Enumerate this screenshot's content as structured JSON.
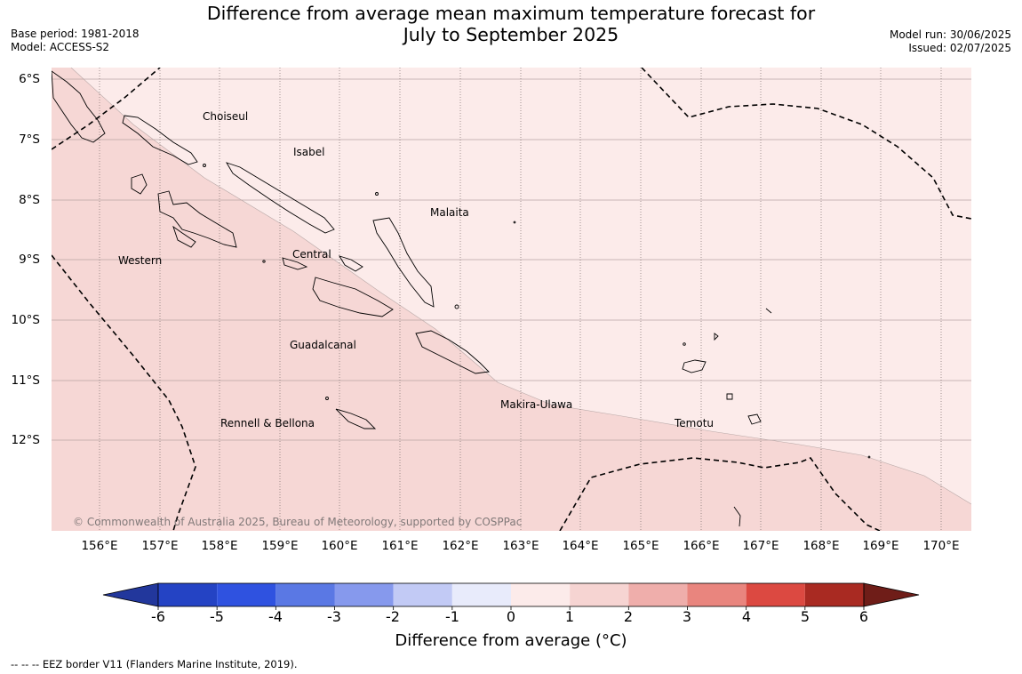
{
  "title": {
    "line1": "Difference from average mean maximum temperature forecast for",
    "line2": "July to September 2025"
  },
  "meta_left": {
    "base_period": "Base period: 1981-2018",
    "model": "Model: ACCESS-S2"
  },
  "meta_right": {
    "model_run": "Model run: 30/06/2025",
    "issued": "Issued: 02/07/2025"
  },
  "map": {
    "lat_labels": [
      "6°S",
      "7°S",
      "8°S",
      "9°S",
      "10°S",
      "11°S",
      "12°S"
    ],
    "lon_labels": [
      "156°E",
      "157°E",
      "158°E",
      "159°E",
      "160°E",
      "161°E",
      "162°E",
      "163°E",
      "164°E",
      "165°E",
      "166°E",
      "167°E",
      "168°E",
      "169°E",
      "170°E"
    ],
    "places": {
      "choiseul": "Choiseul",
      "isabel": "Isabel",
      "malaita": "Malaita",
      "western": "Western",
      "central": "Central",
      "guadalcanal": "Guadalcanal",
      "makira": "Makira-Ulawa",
      "temotu": "Temotu",
      "rennell": "Rennell & Bellona"
    },
    "copyright": "© Commonwealth of Australia 2025, Bureau of Meteorology, supported by COSPPac",
    "colors": {
      "zone_0_1": "#fcebea",
      "zone_1_2": "#f6d7d5"
    }
  },
  "colorbar": {
    "ticks": [
      "-6",
      "-5",
      "-4",
      "-3",
      "-2",
      "-1",
      "0",
      "1",
      "2",
      "3",
      "4",
      "5",
      "6"
    ],
    "colors": [
      "#22379c",
      "#2443c4",
      "#2f52e0",
      "#5a78e4",
      "#8699ed",
      "#c2caf5",
      "#e8ebfb",
      "#fcebea",
      "#f6d4d2",
      "#efaeab",
      "#e9857e",
      "#dc4941",
      "#a92a22",
      "#6f1d18"
    ],
    "label": "Difference from average (°C)"
  },
  "footnote": "--  --  -- EEZ border V11 (Flanders Marine Institute, 2019)."
}
